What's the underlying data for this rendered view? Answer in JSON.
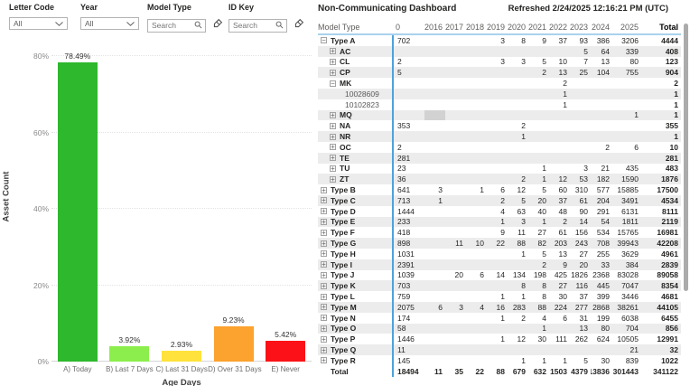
{
  "filters": {
    "letter_code": {
      "label": "Letter Code",
      "value": "All"
    },
    "year": {
      "label": "Year",
      "value": "All"
    },
    "model_type": {
      "label": "Model Type",
      "placeholder": "Search"
    },
    "id_key": {
      "label": "ID Key",
      "placeholder": "Search"
    }
  },
  "chart_data": {
    "type": "bar",
    "title": "",
    "categories": [
      "A) Today",
      "B) Last 7 Days",
      "C) Last 31 Days",
      "D) Over 31 Days",
      "E) Never"
    ],
    "values": [
      78.49,
      3.92,
      2.93,
      9.23,
      5.42
    ],
    "value_labels": [
      "78.49%",
      "3.92%",
      "2.93%",
      "9.23%",
      "5.42%"
    ],
    "bar_colors": [
      "#2db82d",
      "#8cee4d",
      "#ffe23c",
      "#fca22e",
      "#fb1117"
    ],
    "xlabel": "Age Days",
    "ylabel": "Asset Count",
    "ylim": [
      0,
      82
    ],
    "yticks": [
      {
        "v": 0,
        "label": "0%"
      },
      {
        "v": 20,
        "label": "20%"
      },
      {
        "v": 40,
        "label": "40%"
      },
      {
        "v": 60,
        "label": "60%"
      },
      {
        "v": 80,
        "label": "80%"
      }
    ],
    "grid": "horizontal-dotted",
    "legend": "none"
  },
  "table": {
    "title": "Non-Communicating Dashboard",
    "refreshed": "Refreshed 2/24/2025 12:16:21 PM (UTC)",
    "columns": [
      "Model Type",
      "0",
      "2016",
      "2017",
      "2018",
      "2019",
      "2020",
      "2021",
      "2022",
      "2023",
      "2024",
      "2025",
      "Total"
    ],
    "rows": [
      {
        "label": "Type A",
        "level": 1,
        "toggle": "minus",
        "cells": [
          "702",
          "",
          "",
          "",
          "3",
          "8",
          "9",
          "37",
          "93",
          "386",
          "3206"
        ],
        "total": "4444"
      },
      {
        "label": "AC",
        "level": 2,
        "toggle": "plus",
        "cells": [
          "",
          "",
          "",
          "",
          "",
          "",
          "",
          "",
          "5",
          "64",
          "339"
        ],
        "total": "408"
      },
      {
        "label": "CL",
        "level": 2,
        "toggle": "plus",
        "cells": [
          "2",
          "",
          "",
          "",
          "3",
          "3",
          "5",
          "10",
          "7",
          "13",
          "80"
        ],
        "total": "123"
      },
      {
        "label": "CP",
        "level": 2,
        "toggle": "plus",
        "cells": [
          "5",
          "",
          "",
          "",
          "",
          "",
          "2",
          "13",
          "25",
          "104",
          "755"
        ],
        "total": "904"
      },
      {
        "label": "MK",
        "level": 2,
        "toggle": "minus",
        "cells": [
          "",
          "",
          "",
          "",
          "",
          "",
          "",
          "2",
          "",
          "",
          ""
        ],
        "total": "2"
      },
      {
        "label": "10028609",
        "level": 3,
        "toggle": "none",
        "cells": [
          "",
          "",
          "",
          "",
          "",
          "",
          "",
          "1",
          "",
          "",
          ""
        ],
        "total": "1"
      },
      {
        "label": "10102823",
        "level": 3,
        "toggle": "none",
        "cells": [
          "",
          "",
          "",
          "",
          "",
          "",
          "",
          "1",
          "",
          "",
          ""
        ],
        "total": "1"
      },
      {
        "label": "MQ",
        "level": 2,
        "toggle": "plus",
        "cells": [
          "",
          "",
          "",
          "",
          "",
          "",
          "",
          "",
          "",
          "",
          "1"
        ],
        "total": "1",
        "highlight_col": 1
      },
      {
        "label": "NA",
        "level": 2,
        "toggle": "plus",
        "cells": [
          "353",
          "",
          "",
          "",
          "",
          "2",
          "",
          "",
          "",
          "",
          ""
        ],
        "total": "355"
      },
      {
        "label": "NR",
        "level": 2,
        "toggle": "plus",
        "cells": [
          "",
          "",
          "",
          "",
          "",
          "1",
          "",
          "",
          "",
          "",
          ""
        ],
        "total": "1"
      },
      {
        "label": "OC",
        "level": 2,
        "toggle": "plus",
        "cells": [
          "2",
          "",
          "",
          "",
          "",
          "",
          "",
          "",
          "",
          "2",
          "6"
        ],
        "total": "10"
      },
      {
        "label": "TE",
        "level": 2,
        "toggle": "plus",
        "cells": [
          "281",
          "",
          "",
          "",
          "",
          "",
          "",
          "",
          "",
          "",
          ""
        ],
        "total": "281"
      },
      {
        "label": "TU",
        "level": 2,
        "toggle": "plus",
        "cells": [
          "23",
          "",
          "",
          "",
          "",
          "",
          "1",
          "",
          "3",
          "21",
          "435"
        ],
        "total": "483"
      },
      {
        "label": "ZT",
        "level": 2,
        "toggle": "plus",
        "cells": [
          "36",
          "",
          "",
          "",
          "",
          "2",
          "1",
          "12",
          "53",
          "182",
          "1590"
        ],
        "total": "1876"
      },
      {
        "label": "Type B",
        "level": 1,
        "toggle": "plus",
        "cells": [
          "641",
          "3",
          "",
          "1",
          "6",
          "12",
          "5",
          "60",
          "310",
          "577",
          "15885"
        ],
        "total": "17500"
      },
      {
        "label": "Type C",
        "level": 1,
        "toggle": "plus",
        "cells": [
          "713",
          "1",
          "",
          "",
          "2",
          "5",
          "20",
          "37",
          "61",
          "204",
          "3491"
        ],
        "total": "4534"
      },
      {
        "label": "Type D",
        "level": 1,
        "toggle": "plus",
        "cells": [
          "1444",
          "",
          "",
          "",
          "4",
          "63",
          "40",
          "48",
          "90",
          "291",
          "6131"
        ],
        "total": "8111"
      },
      {
        "label": "Type E",
        "level": 1,
        "toggle": "plus",
        "cells": [
          "233",
          "",
          "",
          "",
          "1",
          "3",
          "1",
          "2",
          "14",
          "54",
          "1811"
        ],
        "total": "2119"
      },
      {
        "label": "Type F",
        "level": 1,
        "toggle": "plus",
        "cells": [
          "418",
          "",
          "",
          "",
          "9",
          "11",
          "27",
          "61",
          "156",
          "534",
          "15765"
        ],
        "total": "16981"
      },
      {
        "label": "Type G",
        "level": 1,
        "toggle": "plus",
        "cells": [
          "898",
          "",
          "11",
          "10",
          "22",
          "88",
          "82",
          "203",
          "243",
          "708",
          "39943"
        ],
        "total": "42208"
      },
      {
        "label": "Type H",
        "level": 1,
        "toggle": "plus",
        "cells": [
          "1031",
          "",
          "",
          "",
          "",
          "1",
          "5",
          "13",
          "27",
          "255",
          "3629"
        ],
        "total": "4961"
      },
      {
        "label": "Type I",
        "level": 1,
        "toggle": "plus",
        "cells": [
          "2391",
          "",
          "",
          "",
          "",
          "",
          "2",
          "9",
          "20",
          "33",
          "384"
        ],
        "total": "2839"
      },
      {
        "label": "Type J",
        "level": 1,
        "toggle": "plus",
        "cells": [
          "1039",
          "",
          "20",
          "6",
          "14",
          "134",
          "198",
          "425",
          "1826",
          "2368",
          "83028"
        ],
        "total": "89058"
      },
      {
        "label": "Type K",
        "level": 1,
        "toggle": "plus",
        "cells": [
          "703",
          "",
          "",
          "",
          "",
          "8",
          "8",
          "27",
          "116",
          "445",
          "7047"
        ],
        "total": "8354"
      },
      {
        "label": "Type L",
        "level": 1,
        "toggle": "plus",
        "cells": [
          "759",
          "",
          "",
          "",
          "1",
          "1",
          "8",
          "30",
          "37",
          "399",
          "3446"
        ],
        "total": "4681"
      },
      {
        "label": "Type M",
        "level": 1,
        "toggle": "plus",
        "cells": [
          "2075",
          "6",
          "3",
          "4",
          "16",
          "283",
          "88",
          "224",
          "277",
          "2868",
          "38261"
        ],
        "total": "44105"
      },
      {
        "label": "Type N",
        "level": 1,
        "toggle": "plus",
        "cells": [
          "174",
          "",
          "",
          "",
          "1",
          "2",
          "4",
          "6",
          "31",
          "199",
          "6038"
        ],
        "total": "6455"
      },
      {
        "label": "Type O",
        "level": 1,
        "toggle": "plus",
        "cells": [
          "58",
          "",
          "",
          "",
          "",
          "",
          "1",
          "",
          "13",
          "80",
          "704"
        ],
        "total": "856"
      },
      {
        "label": "Type P",
        "level": 1,
        "toggle": "plus",
        "cells": [
          "1446",
          "",
          "",
          "",
          "1",
          "12",
          "30",
          "111",
          "262",
          "624",
          "10505"
        ],
        "total": "12991"
      },
      {
        "label": "Type Q",
        "level": 1,
        "toggle": "plus",
        "cells": [
          "11",
          "",
          "",
          "",
          "",
          "",
          "",
          "",
          "",
          "",
          "21"
        ],
        "total": "32"
      },
      {
        "label": "Type R",
        "level": 1,
        "toggle": "plus",
        "cells": [
          "145",
          "",
          "",
          "",
          "",
          "1",
          "1",
          "1",
          "5",
          "30",
          "839"
        ],
        "total": "1022"
      }
    ],
    "total_row": {
      "label": "Total",
      "cells": [
        "18494",
        "11",
        "35",
        "22",
        "88",
        "679",
        "632",
        "1503",
        "4379",
        "13836",
        "301443"
      ],
      "total": "341122"
    }
  },
  "colors": {
    "accent_blue_line": "#4ea3dc",
    "header_underline": "#a9d2ed",
    "alt_row": "#ececec",
    "highlight_cell": "#d2d2d2",
    "scrollbar_thumb": "#ababab"
  }
}
